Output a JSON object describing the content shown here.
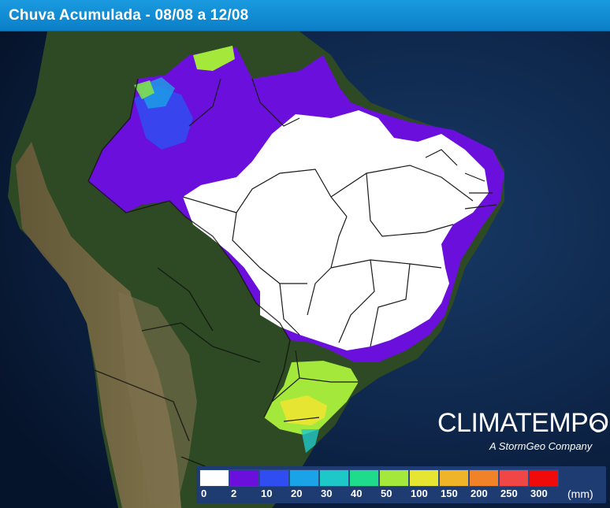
{
  "header": {
    "title": "Chuva Acumulada - 08/08 a 12/08"
  },
  "brand": {
    "name": "CLIMATEMPO",
    "tagline": "A StormGeo Company"
  },
  "legend": {
    "unit": "(mm)",
    "classes": [
      {
        "label": "0",
        "color": "#ffffff"
      },
      {
        "label": "2",
        "color": "#6a0fdc"
      },
      {
        "label": "10",
        "color": "#2f4df0"
      },
      {
        "label": "20",
        "color": "#1aa3e6"
      },
      {
        "label": "30",
        "color": "#1ec8c8"
      },
      {
        "label": "40",
        "color": "#1edc8c"
      },
      {
        "label": "50",
        "color": "#a4e83c"
      },
      {
        "label": "100",
        "color": "#e6e632"
      },
      {
        "label": "150",
        "color": "#f0b428"
      },
      {
        "label": "200",
        "color": "#f08228"
      },
      {
        "label": "250",
        "color": "#f04646"
      },
      {
        "label": "300",
        "color": "#f00a0a"
      }
    ]
  },
  "colors": {
    "ocean": "#0b1e3d",
    "land_forest": "#2f4a25",
    "land_desert": "#8a7a5a",
    "no_rain": "#ffffff",
    "light_rain": "#6a0fdc"
  }
}
